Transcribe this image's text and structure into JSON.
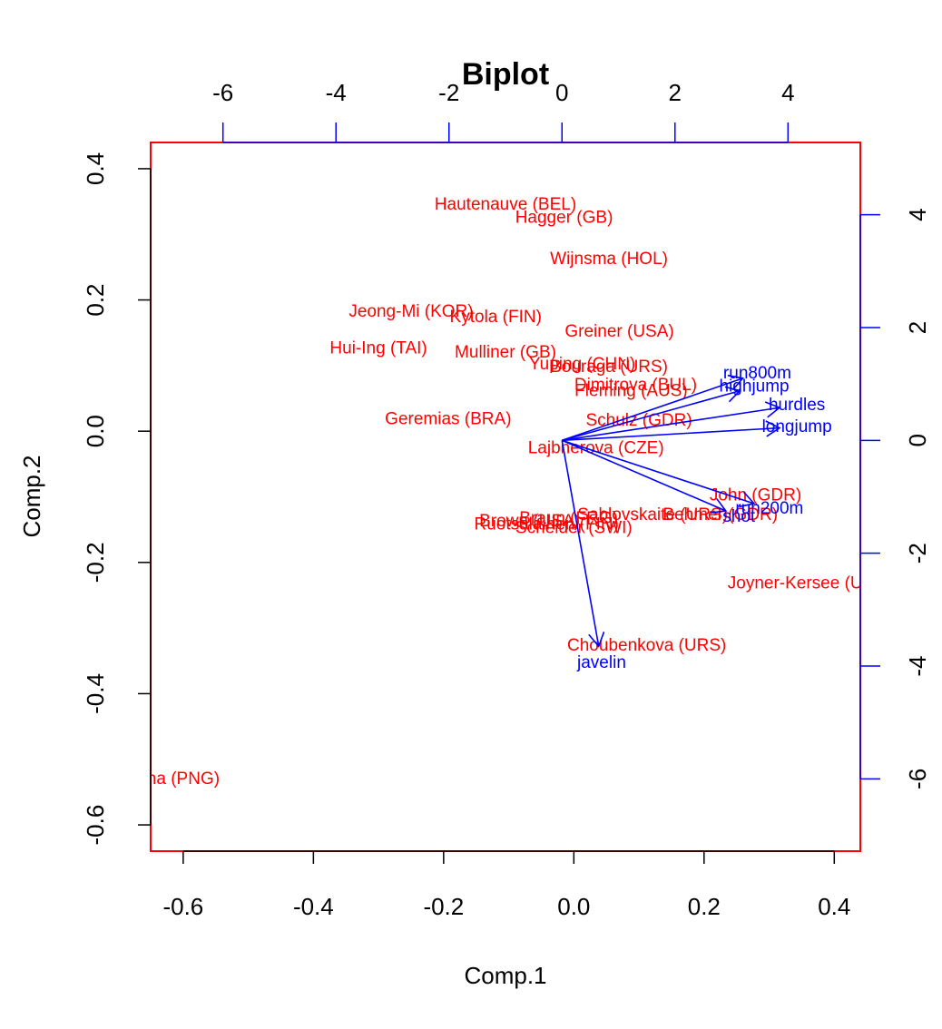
{
  "chart_data": {
    "type": "biplot",
    "title": "Biplot",
    "xlabel": "Comp.1",
    "ylabel": "Comp.2",
    "xlim": [
      -0.65,
      0.44
    ],
    "ylim": [
      -0.64,
      0.44
    ],
    "x_ticks": [
      "-0.6",
      "-0.4",
      "-0.2",
      "0.0",
      "0.2",
      "0.4"
    ],
    "y_ticks": [
      "-0.6",
      "-0.4",
      "-0.2",
      "0.0",
      "0.2",
      "0.4"
    ],
    "loading_axis": {
      "lim_x": [
        -7.28,
        5.28
      ],
      "lim_y": [
        -7.28,
        5.28
      ],
      "top_ticks": [
        "-6",
        "-4",
        "-2",
        "0",
        "2",
        "4"
      ],
      "right_ticks": [
        "-6",
        "-4",
        "-2",
        "0",
        "2",
        "4"
      ]
    },
    "colors": {
      "observations": "#ff0000",
      "variables": "#0000ff",
      "frame": "#ff0000",
      "axes": "#000000"
    },
    "observations": [
      {
        "label": "Hautenauve (BEL)",
        "x": -0.105,
        "y": 0.345
      },
      {
        "label": "Hagger (GB)",
        "x": -0.015,
        "y": 0.325
      },
      {
        "label": "Wijnsma (HOL)",
        "x": 0.054,
        "y": 0.262
      },
      {
        "label": "Jeong-Mi (KOR)",
        "x": -0.25,
        "y": 0.182
      },
      {
        "label": "Kytola (FIN)",
        "x": -0.12,
        "y": 0.174
      },
      {
        "label": "Greiner (USA)",
        "x": 0.07,
        "y": 0.152
      },
      {
        "label": "Hui-Ing (TAI)",
        "x": -0.3,
        "y": 0.126
      },
      {
        "label": "Mulliner (GB)",
        "x": -0.105,
        "y": 0.12
      },
      {
        "label": "Yuping (CHN)",
        "x": 0.013,
        "y": 0.102
      },
      {
        "label": "Bouraga (URS)",
        "x": 0.054,
        "y": 0.098
      },
      {
        "label": "Dimitrova (BUL)",
        "x": 0.095,
        "y": 0.07
      },
      {
        "label": "Fleming (AUS)",
        "x": 0.088,
        "y": 0.061
      },
      {
        "label": "Geremias (BRA)",
        "x": -0.193,
        "y": 0.018
      },
      {
        "label": "Schulz (GDR)",
        "x": 0.1,
        "y": 0.016
      },
      {
        "label": "Lajbnerova (CZE)",
        "x": 0.034,
        "y": -0.026
      },
      {
        "label": "John (GDR)",
        "x": 0.279,
        "y": -0.098
      },
      {
        "label": "Sablovskaite (URS)",
        "x": 0.121,
        "y": -0.128
      },
      {
        "label": "Behmer (GDR)",
        "x": 0.225,
        "y": -0.128
      },
      {
        "label": "Braun (FRG)",
        "x": -0.008,
        "y": -0.133
      },
      {
        "label": "Brown (USA)",
        "x": -0.068,
        "y": -0.137
      },
      {
        "label": "Ruotsalainen (FIN)",
        "x": -0.042,
        "y": -0.142
      },
      {
        "label": "Scheider (SWI)",
        "x": 0.0,
        "y": -0.148
      },
      {
        "label": "Joyner-Kersee (USA)",
        "x": 0.362,
        "y": -0.232
      },
      {
        "label": "Choubenkova (URS)",
        "x": 0.112,
        "y": -0.327
      },
      {
        "label": "Launa (PNG)",
        "x": -0.622,
        "y": -0.53
      }
    ],
    "variables": [
      {
        "name": "hurdles",
        "x": 3.85,
        "y": 0.58
      },
      {
        "name": "highjump",
        "x": 3.15,
        "y": 0.88
      },
      {
        "name": "shot",
        "x": 2.9,
        "y": -1.25
      },
      {
        "name": "run200m",
        "x": 3.4,
        "y": -1.12
      },
      {
        "name": "longjump",
        "x": 3.85,
        "y": 0.22
      },
      {
        "name": "javelin",
        "x": 0.65,
        "y": -3.65
      },
      {
        "name": "run800m",
        "x": 3.2,
        "y": 1.1
      }
    ]
  }
}
